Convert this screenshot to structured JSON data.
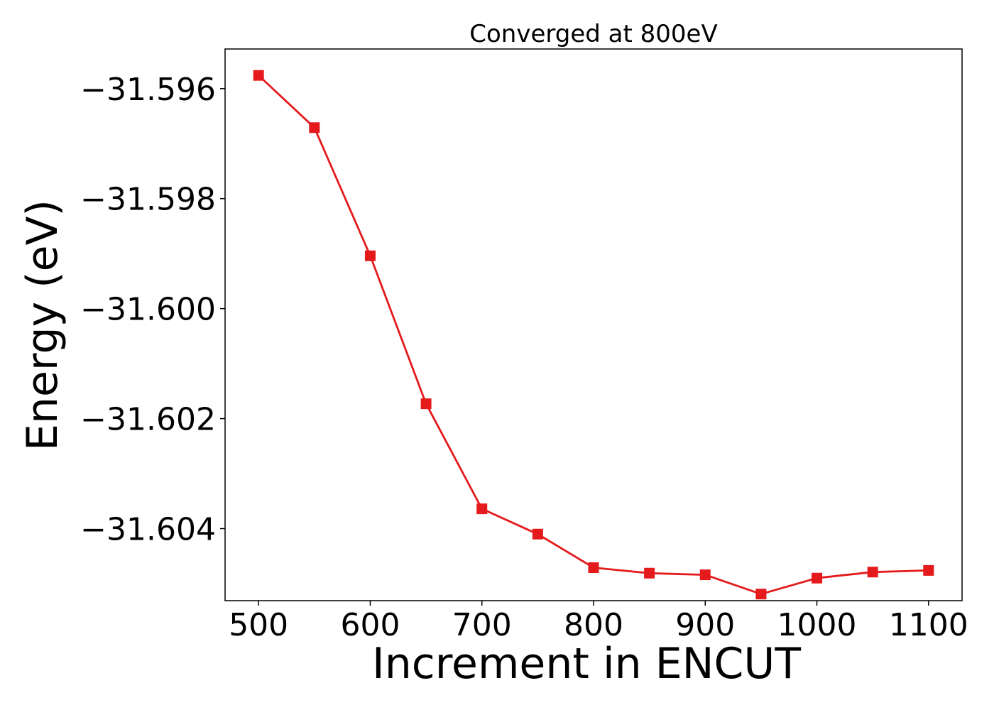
{
  "chart_data": {
    "type": "line",
    "title": "Converged at 800eV",
    "xlabel": "Increment in ENCUT",
    "ylabel": "Energy (eV)",
    "x": [
      500,
      550,
      600,
      650,
      700,
      750,
      800,
      850,
      900,
      950,
      1000,
      1050,
      1100
    ],
    "series": [
      {
        "values": [
          -31.59576,
          -31.59671,
          -31.59904,
          -31.60173,
          -31.60364,
          -31.6041,
          -31.60471,
          -31.60481,
          -31.60484,
          -31.60519,
          -31.6049,
          -31.60479,
          -31.60476
        ],
        "color": "#e41a1c",
        "marker": "square"
      }
    ],
    "xticks": [
      500,
      600,
      700,
      800,
      900,
      1000,
      1100
    ],
    "xtick_labels": [
      "500",
      "600",
      "700",
      "800",
      "900",
      "1000",
      "1100"
    ],
    "yticks": [
      -31.596,
      -31.598,
      -31.6,
      -31.602,
      -31.604
    ],
    "ytick_labels": [
      "−31.596",
      "−31.598",
      "−31.600",
      "−31.602",
      "−31.604"
    ],
    "xlim": [
      470,
      1130
    ],
    "ylim": [
      -31.60531,
      -31.59528
    ],
    "grid": false,
    "legend": "none"
  }
}
